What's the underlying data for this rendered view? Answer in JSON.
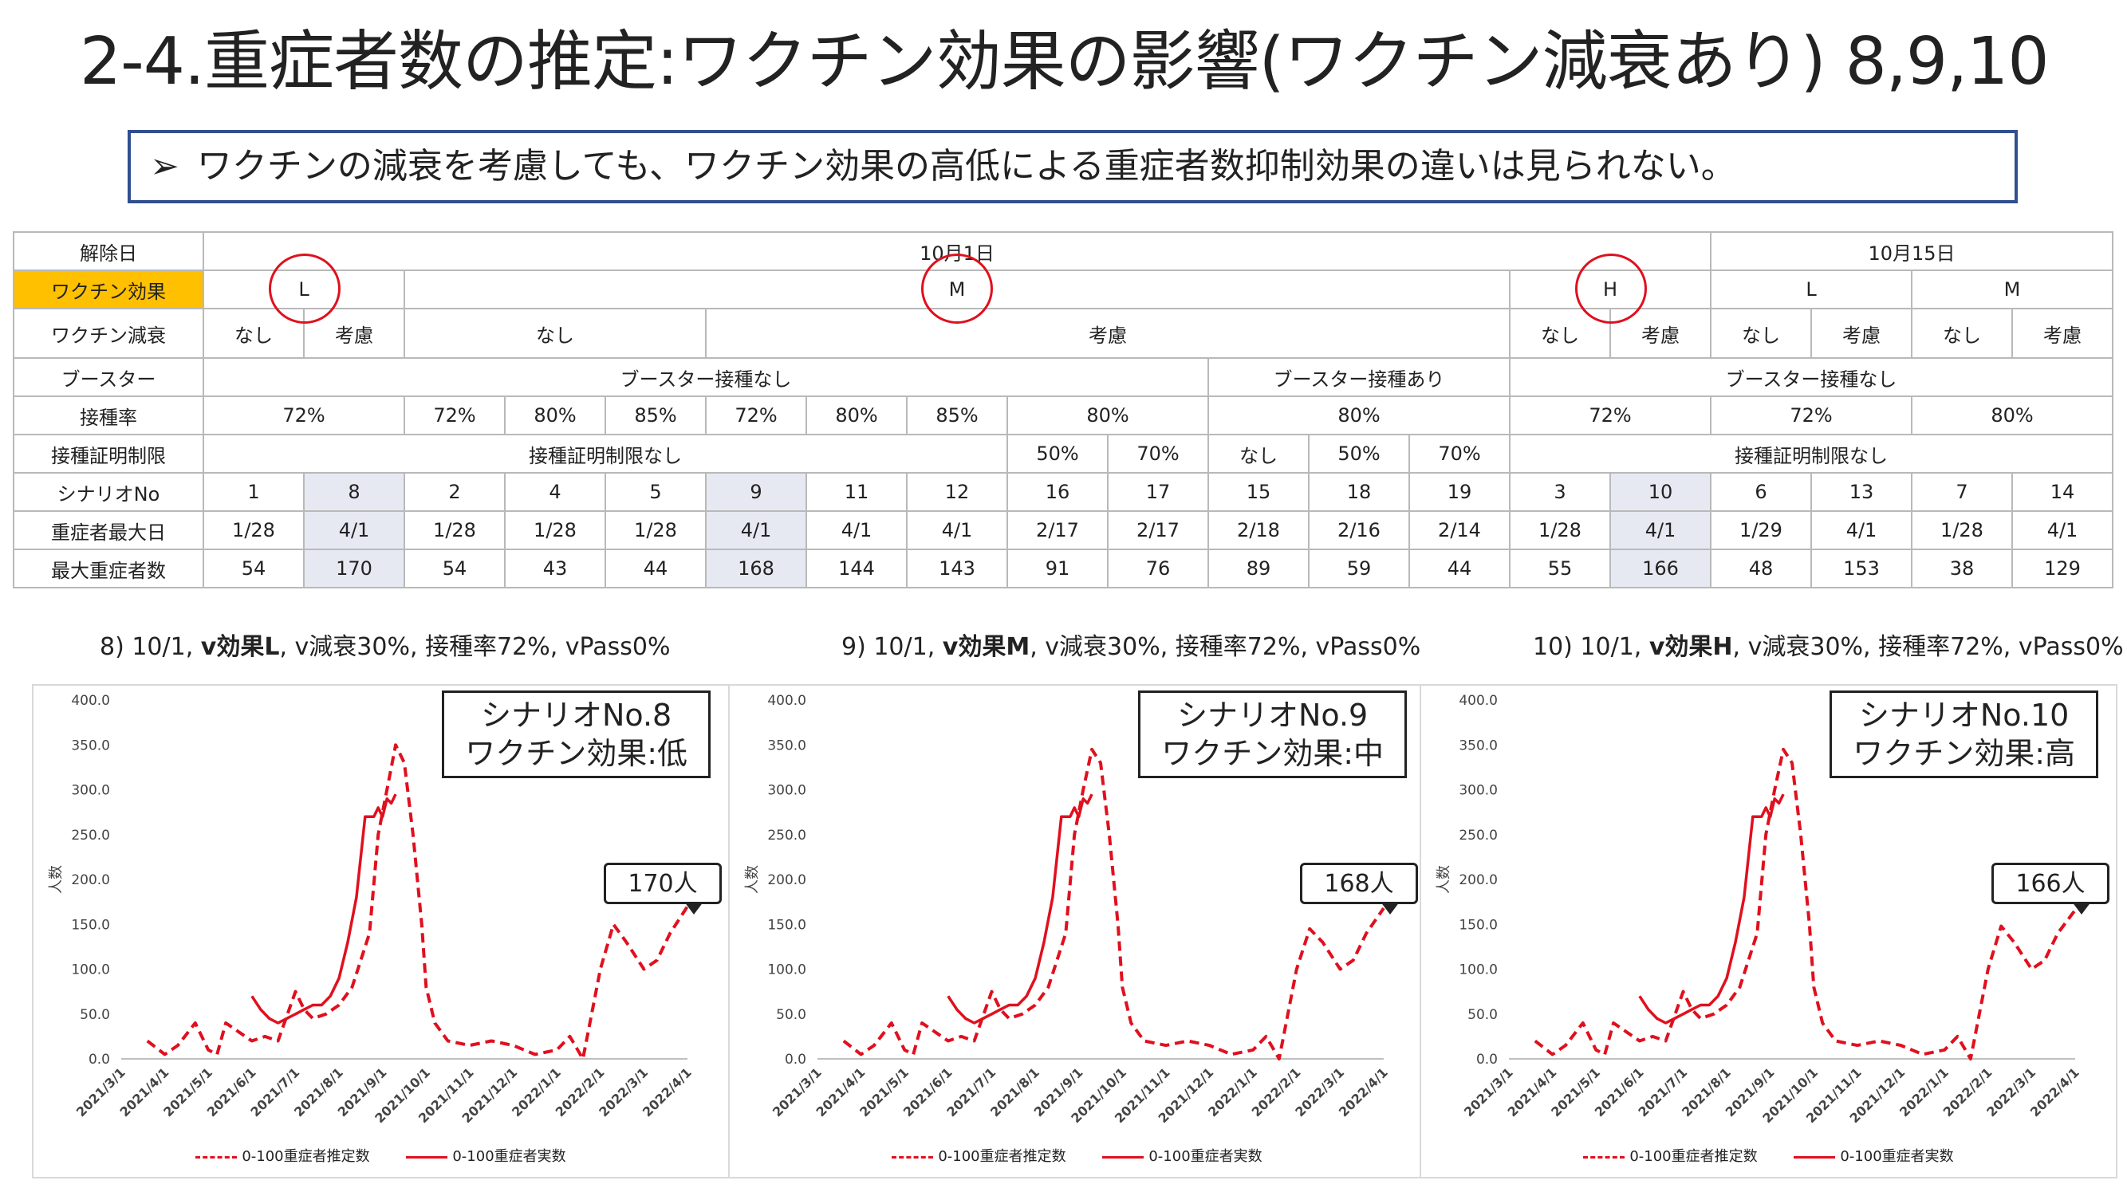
{
  "title": "2-4.重症者数の推定:ワクチン効果の影響(ワクチン減衰あり) 8,9,10",
  "conclusion": "ワクチンの減衰を考慮しても、ワクチン効果の高低による重症者数抑制効果の違いは見られない。",
  "conclusion_bullet": "➢",
  "table": {
    "row_labels": [
      "解除日",
      "ワクチン効果",
      "ワクチン減衰",
      "ブースター",
      "接種率",
      "接種証明制限",
      "シナリオNo",
      "重症者最大日",
      "最大重症者数"
    ],
    "release_dates": [
      "10月1日",
      "10月15日"
    ],
    "vaccine_effect": [
      "L",
      "M",
      "H",
      "L",
      "M"
    ],
    "vaccine_decay": [
      "なし",
      "考慮",
      "なし",
      "考慮",
      "なし",
      "考慮",
      "なし",
      "考慮",
      "なし",
      "考慮"
    ],
    "booster": [
      "ブースター接種なし",
      "ブースター接種あり",
      "ブースター接種なし"
    ],
    "coverage": [
      "72%",
      "72%",
      "80%",
      "85%",
      "72%",
      "80%",
      "85%",
      "80%",
      "80%",
      "72%",
      "72%",
      "80%"
    ],
    "certificate": [
      "接種証明制限なし",
      "50%",
      "70%",
      "なし",
      "50%",
      "70%",
      "接種証明制限なし"
    ],
    "scenario_no": [
      "1",
      "8",
      "2",
      "4",
      "5",
      "9",
      "11",
      "12",
      "16",
      "17",
      "15",
      "18",
      "19",
      "3",
      "10",
      "6",
      "13",
      "7",
      "14"
    ],
    "peak_date": [
      "1/28",
      "4/1",
      "1/28",
      "1/28",
      "1/28",
      "4/1",
      "4/1",
      "4/1",
      "2/17",
      "2/17",
      "2/18",
      "2/16",
      "2/14",
      "1/28",
      "4/1",
      "1/29",
      "4/1",
      "1/28",
      "4/1"
    ],
    "peak_count": [
      "54",
      "170",
      "54",
      "43",
      "44",
      "168",
      "144",
      "143",
      "91",
      "76",
      "89",
      "59",
      "44",
      "55",
      "166",
      "48",
      "153",
      "38",
      "129"
    ]
  },
  "captions": [
    {
      "prefix": "8) 10/1, ",
      "bold": "v効果L",
      "suffix": ", v減衰30%, 接種率72%, vPass0%"
    },
    {
      "prefix": "9) 10/1, ",
      "bold": "v効果M",
      "suffix": ", v減衰30%, 接種率72%, vPass0%"
    },
    {
      "prefix": "10) 10/1, ",
      "bold": "v効果H",
      "suffix": ", v減衰30%, 接種率72%, vPass0%"
    }
  ],
  "charts_meta": [
    {
      "box_line1": "シナリオNo.8",
      "box_line2": "ワクチン効果:低",
      "callout": "170人"
    },
    {
      "box_line1": "シナリオNo.9",
      "box_line2": "ワクチン効果:中",
      "callout": "168人"
    },
    {
      "box_line1": "シナリオNo.10",
      "box_line2": "ワクチン効果:高",
      "callout": "166人"
    }
  ],
  "legend": {
    "estimated": "0-100重症者推定数",
    "actual": "0-100重症者実数"
  },
  "colors": {
    "series": "#e0101e",
    "highlight": "#ffc000",
    "shade": "#e7e9f2",
    "box_border": "#2f4f8f"
  },
  "chart_data": [
    {
      "type": "line",
      "ylabel": "人数",
      "ylim": [
        0,
        400
      ],
      "yticks": [
        "0.0",
        "50.0",
        "100.0",
        "150.0",
        "200.0",
        "250.0",
        "300.0",
        "350.0",
        "400.0"
      ],
      "xticks": [
        "2021/3/1",
        "2021/4/1",
        "2021/5/1",
        "2021/6/1",
        "2021/7/1",
        "2021/8/1",
        "2021/9/1",
        "2021/10/1",
        "2021/11/1",
        "2021/12/1",
        "2022/1/1",
        "2022/2/1",
        "2022/3/1",
        "2022/4/1"
      ],
      "series": [
        {
          "name": "0-100重症者推定数",
          "style": "dashed",
          "x": [
            0.6,
            1.0,
            1.3,
            1.7,
            2.0,
            2.2,
            2.4,
            2.7,
            3.0,
            3.3,
            3.6,
            4.0,
            4.2,
            4.4,
            4.7,
            5.0,
            5.3,
            5.7,
            5.9,
            6.1,
            6.3,
            6.5,
            6.7,
            6.9,
            7.0,
            7.2,
            7.5,
            8.0,
            8.5,
            9.0,
            9.5,
            10.0,
            10.3,
            10.6,
            11.0,
            11.3,
            11.6,
            12.0,
            12.3,
            12.6,
            13.0
          ],
          "y": [
            20,
            5,
            15,
            40,
            10,
            5,
            40,
            30,
            20,
            25,
            20,
            75,
            55,
            45,
            50,
            60,
            80,
            140,
            250,
            300,
            350,
            330,
            250,
            150,
            80,
            40,
            20,
            15,
            20,
            15,
            5,
            10,
            25,
            0,
            100,
            150,
            130,
            100,
            110,
            140,
            170
          ]
        },
        {
          "name": "0-100重症者実数",
          "style": "solid",
          "x": [
            3.0,
            3.2,
            3.4,
            3.6,
            3.8,
            4.0,
            4.2,
            4.4,
            4.6,
            4.8,
            5.0,
            5.2,
            5.4,
            5.6,
            5.8,
            5.9,
            6.0,
            6.1,
            6.2,
            6.3
          ],
          "y": [
            70,
            55,
            45,
            40,
            45,
            50,
            55,
            60,
            60,
            70,
            90,
            130,
            180,
            270,
            270,
            280,
            270,
            290,
            285,
            295
          ]
        }
      ]
    },
    {
      "type": "line",
      "ylabel": "人数",
      "ylim": [
        0,
        400
      ],
      "yticks": [
        "0.0",
        "50.0",
        "100.0",
        "150.0",
        "200.0",
        "250.0",
        "300.0",
        "350.0",
        "400.0"
      ],
      "xticks": [
        "2021/3/1",
        "2021/4/1",
        "2021/5/1",
        "2021/6/1",
        "2021/7/1",
        "2021/8/1",
        "2021/9/1",
        "2021/10/1",
        "2021/11/1",
        "2021/12/1",
        "2022/1/1",
        "2022/2/1",
        "2022/3/1",
        "2022/4/1"
      ],
      "series": [
        {
          "name": "0-100重症者推定数",
          "style": "dashed",
          "x": [
            0.6,
            1.0,
            1.3,
            1.7,
            2.0,
            2.2,
            2.4,
            2.7,
            3.0,
            3.3,
            3.6,
            4.0,
            4.2,
            4.4,
            4.7,
            5.0,
            5.3,
            5.7,
            5.9,
            6.1,
            6.3,
            6.5,
            6.7,
            6.9,
            7.0,
            7.2,
            7.5,
            8.0,
            8.5,
            9.0,
            9.5,
            10.0,
            10.3,
            10.6,
            11.0,
            11.3,
            11.6,
            12.0,
            12.3,
            12.6,
            13.0
          ],
          "y": [
            20,
            5,
            15,
            40,
            10,
            5,
            40,
            30,
            20,
            25,
            20,
            75,
            55,
            45,
            50,
            60,
            80,
            140,
            250,
            300,
            345,
            330,
            250,
            150,
            80,
            40,
            20,
            15,
            20,
            15,
            5,
            10,
            25,
            0,
            100,
            145,
            130,
            100,
            110,
            140,
            168
          ]
        },
        {
          "name": "0-100重症者実数",
          "style": "solid",
          "x": [
            3.0,
            3.2,
            3.4,
            3.6,
            3.8,
            4.0,
            4.2,
            4.4,
            4.6,
            4.8,
            5.0,
            5.2,
            5.4,
            5.6,
            5.8,
            5.9,
            6.0,
            6.1,
            6.2,
            6.3
          ],
          "y": [
            70,
            55,
            45,
            40,
            45,
            50,
            55,
            60,
            60,
            70,
            90,
            130,
            180,
            270,
            270,
            280,
            270,
            290,
            285,
            295
          ]
        }
      ]
    },
    {
      "type": "line",
      "ylabel": "人数",
      "ylim": [
        0,
        400
      ],
      "yticks": [
        "0.0",
        "50.0",
        "100.0",
        "150.0",
        "200.0",
        "250.0",
        "300.0",
        "350.0",
        "400.0"
      ],
      "xticks": [
        "2021/3/1",
        "2021/4/1",
        "2021/5/1",
        "2021/6/1",
        "2021/7/1",
        "2021/8/1",
        "2021/9/1",
        "2021/10/1",
        "2021/11/1",
        "2021/12/1",
        "2022/1/1",
        "2022/2/1",
        "2022/3/1",
        "2022/4/1"
      ],
      "series": [
        {
          "name": "0-100重症者推定数",
          "style": "dashed",
          "x": [
            0.6,
            1.0,
            1.3,
            1.7,
            2.0,
            2.2,
            2.4,
            2.7,
            3.0,
            3.3,
            3.6,
            4.0,
            4.2,
            4.4,
            4.7,
            5.0,
            5.3,
            5.7,
            5.9,
            6.1,
            6.3,
            6.5,
            6.7,
            6.9,
            7.0,
            7.2,
            7.5,
            8.0,
            8.5,
            9.0,
            9.5,
            10.0,
            10.3,
            10.6,
            11.0,
            11.3,
            11.6,
            12.0,
            12.3,
            12.6,
            13.0
          ],
          "y": [
            20,
            5,
            15,
            40,
            10,
            5,
            40,
            30,
            20,
            25,
            20,
            75,
            55,
            45,
            50,
            60,
            80,
            140,
            250,
            300,
            345,
            330,
            250,
            150,
            80,
            40,
            20,
            15,
            20,
            15,
            5,
            10,
            25,
            0,
            100,
            148,
            130,
            100,
            110,
            140,
            166
          ]
        },
        {
          "name": "0-100重症者実数",
          "style": "solid",
          "x": [
            3.0,
            3.2,
            3.4,
            3.6,
            3.8,
            4.0,
            4.2,
            4.4,
            4.6,
            4.8,
            5.0,
            5.2,
            5.4,
            5.6,
            5.8,
            5.9,
            6.0,
            6.1,
            6.2,
            6.3
          ],
          "y": [
            70,
            55,
            45,
            40,
            45,
            50,
            55,
            60,
            60,
            70,
            90,
            130,
            180,
            270,
            270,
            280,
            270,
            290,
            285,
            295
          ]
        }
      ]
    }
  ]
}
